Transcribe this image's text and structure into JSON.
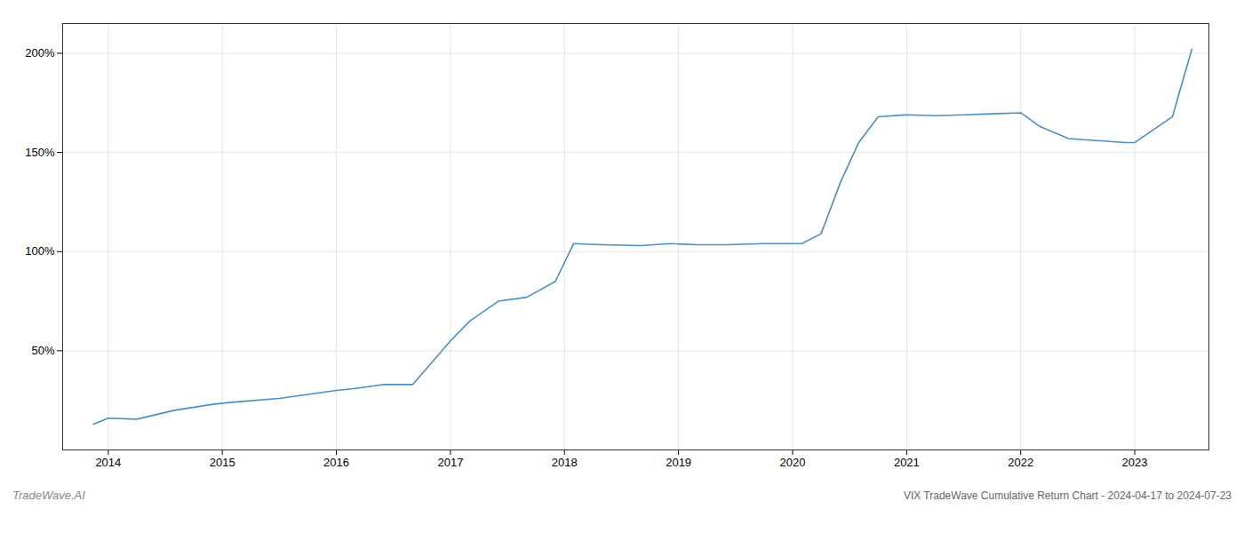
{
  "chart_data": {
    "type": "line",
    "title": "VIX TradeWave Cumulative Return Chart - 2024-04-17 to 2024-07-23",
    "annotations": [
      {
        "text": "TradeWave.AI"
      }
    ],
    "x": [
      2013.87,
      2014.0,
      2014.25,
      2014.58,
      2014.92,
      2015.08,
      2015.5,
      2015.75,
      2016.0,
      2016.17,
      2016.42,
      2016.67,
      2017.0,
      2017.17,
      2017.42,
      2017.67,
      2017.92,
      2018.08,
      2018.33,
      2018.67,
      2018.92,
      2019.17,
      2019.42,
      2019.75,
      2019.92,
      2020.08,
      2020.25,
      2020.42,
      2020.58,
      2020.75,
      2021.0,
      2021.25,
      2021.5,
      2021.75,
      2022.0,
      2022.17,
      2022.42,
      2022.67,
      2022.92,
      2023.0,
      2023.33,
      2023.5
    ],
    "values": [
      13,
      16,
      15.5,
      20,
      23,
      24,
      26,
      28,
      30,
      31,
      33,
      33,
      55,
      65,
      75,
      77,
      85,
      104,
      103.5,
      103,
      104,
      103.5,
      103.5,
      104,
      104,
      104,
      109,
      135,
      155,
      168,
      169,
      168.5,
      169,
      169.5,
      170,
      163,
      157,
      156,
      155,
      155,
      168,
      202
    ],
    "color": "#4a8fc4",
    "xlim": [
      2013.6,
      2023.65
    ],
    "xticks": [
      2014,
      2015,
      2016,
      2017,
      2018,
      2019,
      2020,
      2021,
      2022,
      2023
    ],
    "ylim": [
      0,
      215
    ],
    "yticks": [
      {
        "value": 50,
        "label": "50%"
      },
      {
        "value": 100,
        "label": "100%"
      },
      {
        "value": 150,
        "label": "150%"
      },
      {
        "value": 200,
        "label": "200%"
      }
    ],
    "grid": true
  }
}
